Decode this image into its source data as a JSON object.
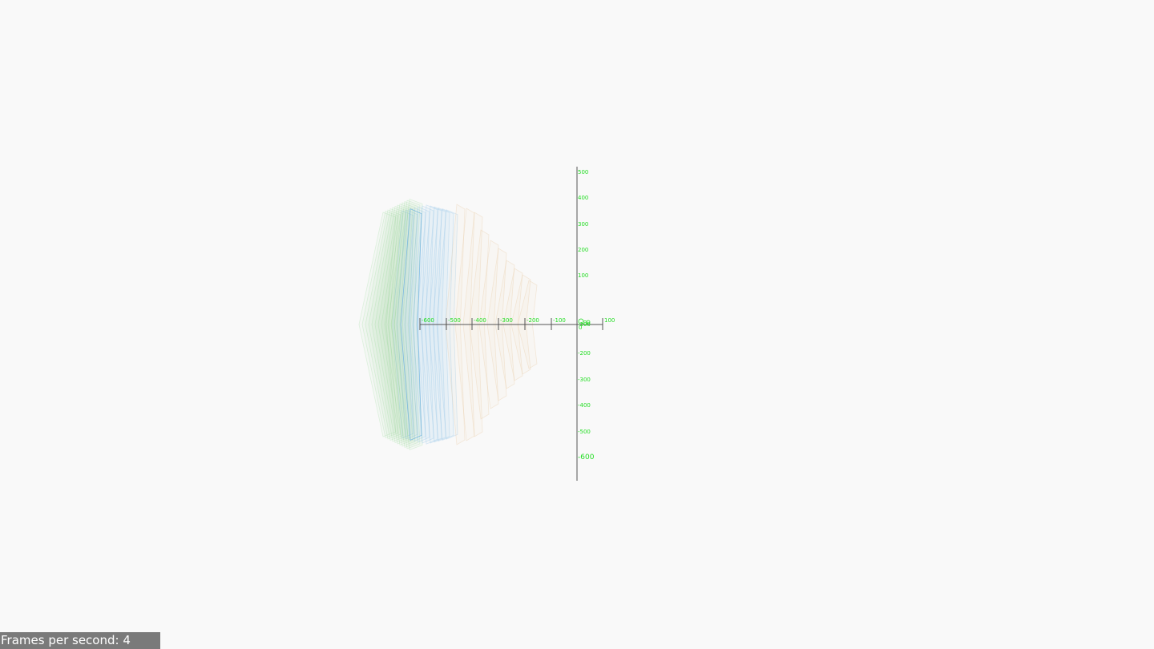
{
  "stats": {
    "fps_label": "Frames per second:",
    "fps_value": 4
  },
  "fps_text": "Frames per second: 4",
  "axes": {
    "x_ticks": [
      "-600",
      "-500",
      "-400",
      "-300",
      "-200",
      "-100",
      "0",
      "100"
    ],
    "y_ticks": [
      "500",
      "400",
      "300",
      "200",
      "100",
      "0",
      "-100",
      "-200",
      "-300",
      "-400",
      "-500",
      "-600"
    ],
    "color": "#22dd22"
  },
  "colors": {
    "background": "#f9f9f9",
    "green_layers": "#66cc66",
    "blue_layers": "#5aa7e0",
    "tan_layers": "#e8c9a0",
    "axis": "#555555"
  },
  "icons": {
    "scene": "3d-viewport"
  }
}
